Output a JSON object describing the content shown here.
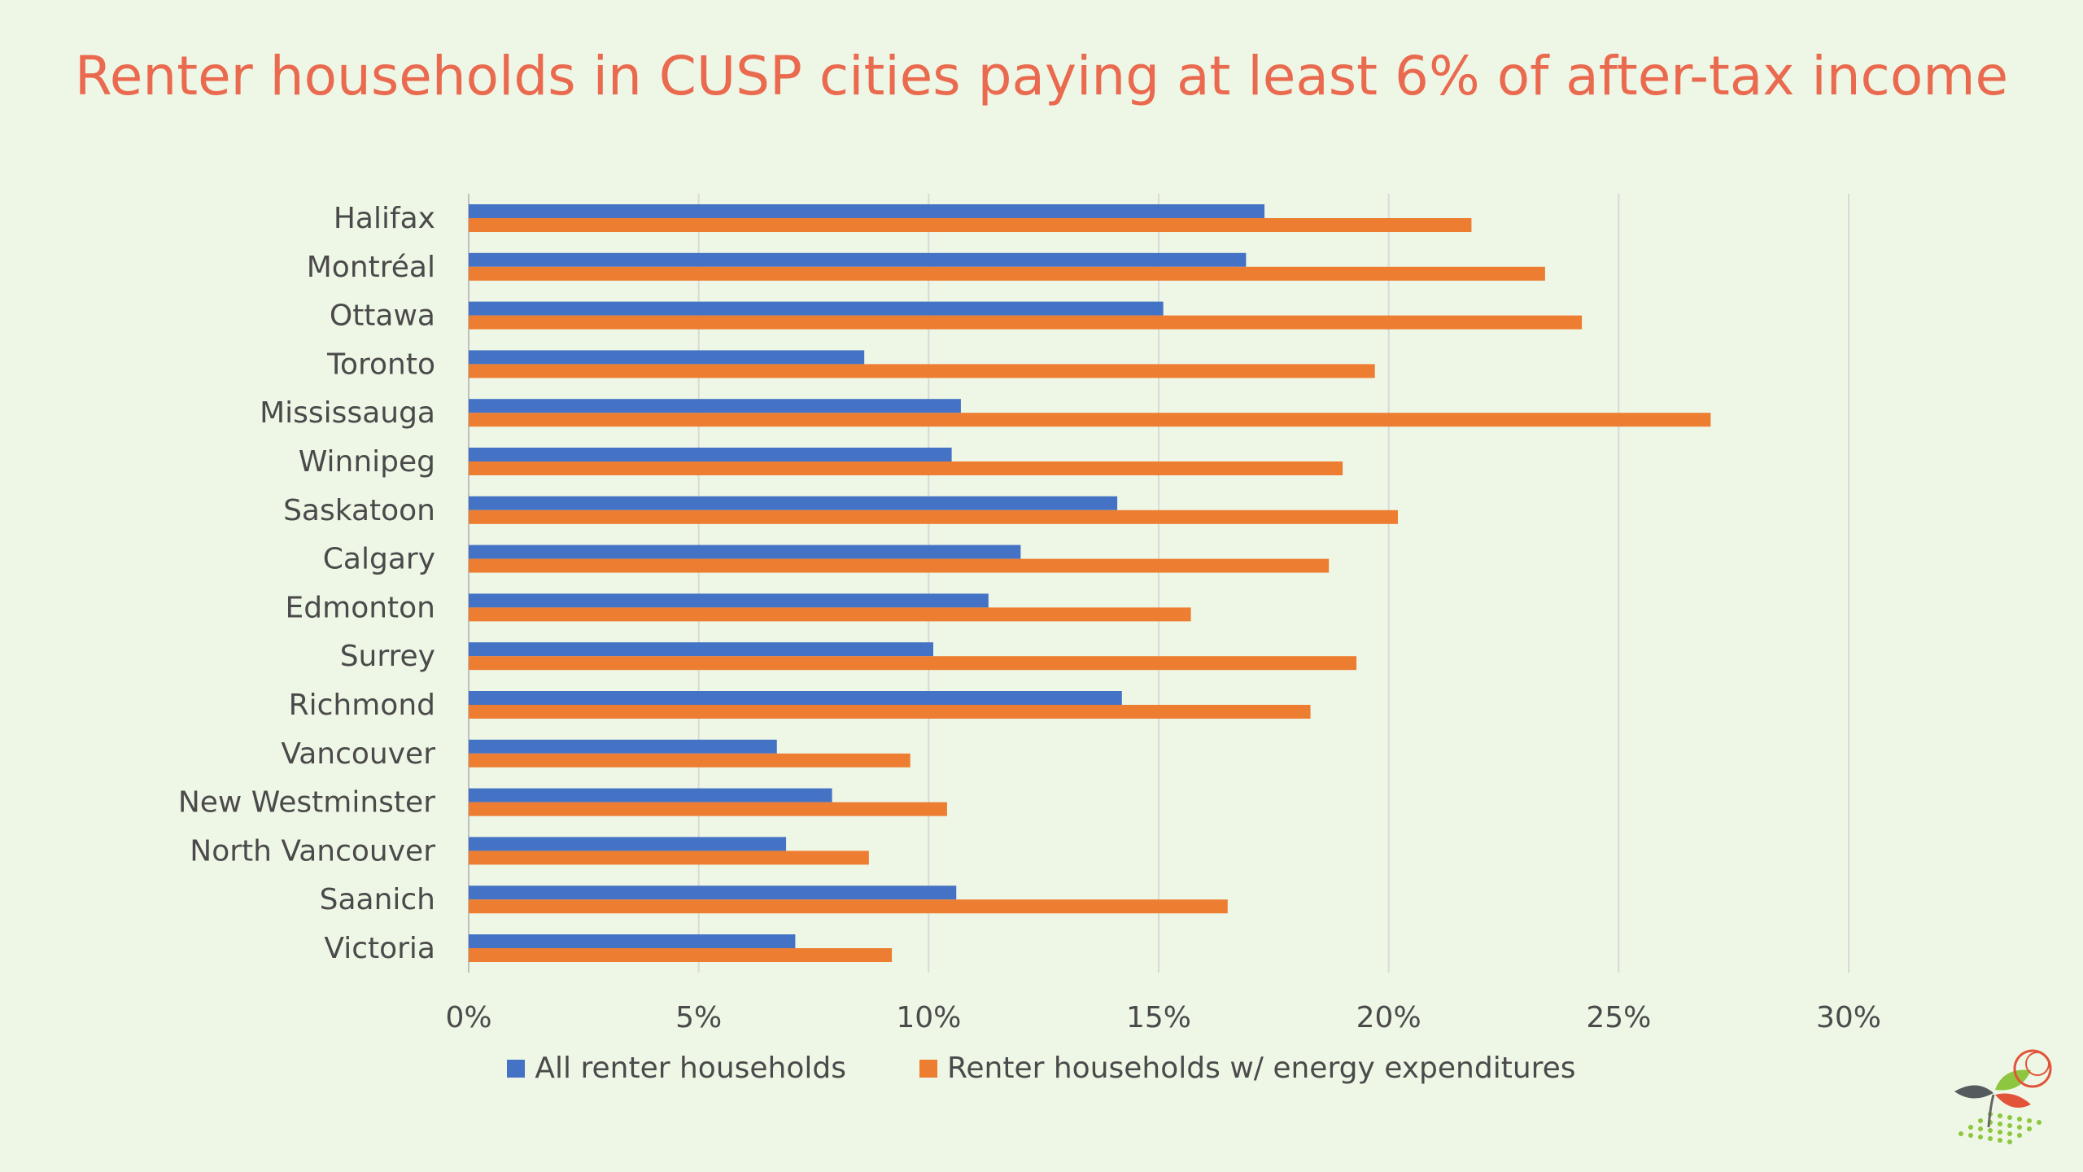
{
  "colors": {
    "background": "#eef7e6",
    "title": "#ea6a4f",
    "series_all": "#4472c4",
    "series_energy": "#ed7d31",
    "grid": "#d9d9d9",
    "text": "#4a4a4a"
  },
  "logo": {
    "icon": "cusp-leaf-logo-icon"
  },
  "chart_data": {
    "type": "bar",
    "orientation": "horizontal",
    "title": "Renter households in CUSP cities paying at least 6% of after-tax income",
    "xlabel": "",
    "ylabel": "",
    "xlim": [
      0,
      30
    ],
    "x_ticks": [
      0,
      5,
      10,
      15,
      20,
      25,
      30
    ],
    "x_tick_labels": [
      "0%",
      "5%",
      "10%",
      "15%",
      "20%",
      "25%",
      "30%"
    ],
    "grid": "vertical",
    "legend_position": "bottom",
    "categories": [
      "Halifax",
      "Montréal",
      "Ottawa",
      "Toronto",
      "Mississauga",
      "Winnipeg",
      "Saskatoon",
      "Calgary",
      "Edmonton",
      "Surrey",
      "Richmond",
      "Vancouver",
      "New Westminster",
      "North Vancouver",
      "Saanich",
      "Victoria"
    ],
    "series": [
      {
        "name": "All renter households",
        "color": "#4472c4",
        "values": [
          17.3,
          16.9,
          15.1,
          8.6,
          10.7,
          10.5,
          14.1,
          12.0,
          11.3,
          10.1,
          14.2,
          6.7,
          7.9,
          6.9,
          10.6,
          7.1
        ]
      },
      {
        "name": "Renter households w/ energy expenditures",
        "color": "#ed7d31",
        "values": [
          21.8,
          23.4,
          24.2,
          19.7,
          27.0,
          19.0,
          20.2,
          18.7,
          15.7,
          19.3,
          18.3,
          9.6,
          10.4,
          8.7,
          16.5,
          9.2
        ]
      }
    ]
  }
}
